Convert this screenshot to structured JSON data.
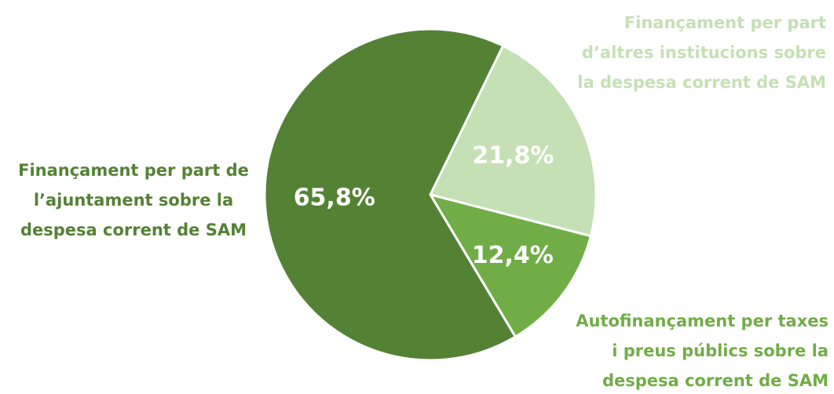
{
  "chart_data": {
    "type": "pie",
    "categories": [
      "Finançament per part\nd’altres institucions sobre\nla despesa corrent de SAM",
      "Autofinançament per taxes\ni preus públics sobre la\ndespesa corrent de SAM",
      "Finançament per part de\nl’ajuntament sobre la\ndespesa corrent de SAM"
    ],
    "values": [
      21.8,
      12.4,
      65.8
    ],
    "value_labels": [
      "21,8%",
      "12,4%",
      "65,8%"
    ],
    "colors": [
      "#c5e0b4",
      "#70ad47",
      "#548235"
    ]
  }
}
